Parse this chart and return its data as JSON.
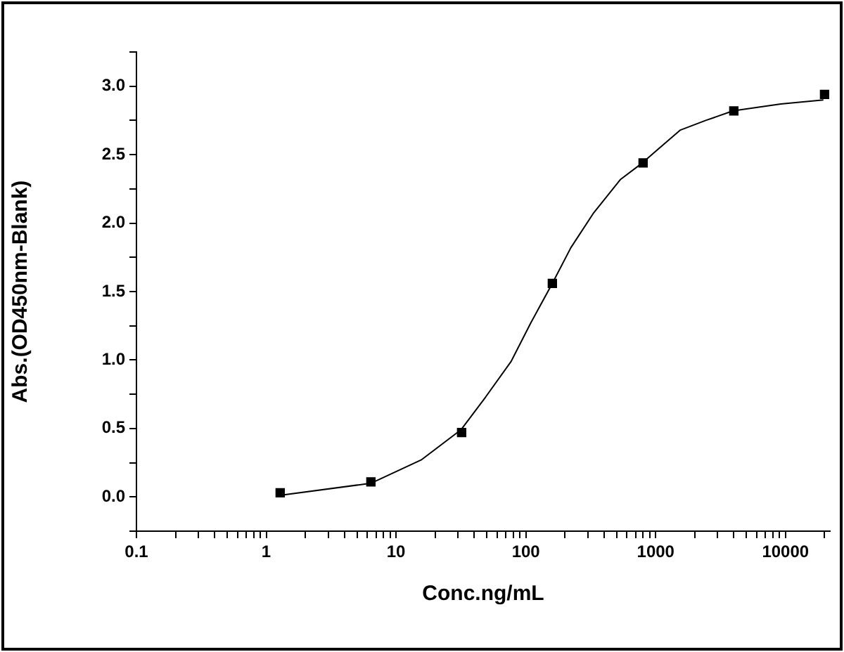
{
  "chart_data": {
    "type": "scatter",
    "xlabel": "Conc.ng/mL",
    "ylabel": "Abs.(OD450nm-Blank)",
    "log": "x",
    "grid": false,
    "legend": false,
    "xlim": [
      0.1,
      22000
    ],
    "ylim": [
      -0.25,
      3.25
    ],
    "xticks": [
      0.1,
      {
        "value": 0.2,
        "label": null
      },
      {
        "value": 0.3,
        "label": null
      },
      {
        "value": 0.4,
        "label": null
      },
      {
        "value": 0.5,
        "label": null
      },
      {
        "value": 0.6,
        "label": null
      },
      {
        "value": 0.7,
        "label": null
      },
      {
        "value": 0.8,
        "label": null
      },
      {
        "value": 0.9,
        "label": null
      },
      1,
      {
        "value": 2,
        "label": null
      },
      {
        "value": 3,
        "label": null
      },
      {
        "value": 4,
        "label": null
      },
      {
        "value": 5,
        "label": null
      },
      {
        "value": 6,
        "label": null
      },
      {
        "value": 7,
        "label": null
      },
      {
        "value": 8,
        "label": null
      },
      {
        "value": 9,
        "label": null
      },
      10,
      {
        "value": 20,
        "label": null
      },
      {
        "value": 30,
        "label": null
      },
      {
        "value": 40,
        "label": null
      },
      {
        "value": 50,
        "label": null
      },
      {
        "value": 60,
        "label": null
      },
      {
        "value": 70,
        "label": null
      },
      {
        "value": 80,
        "label": null
      },
      {
        "value": 90,
        "label": null
      },
      100,
      {
        "value": 200,
        "label": null
      },
      {
        "value": 300,
        "label": null
      },
      {
        "value": 400,
        "label": null
      },
      {
        "value": 500,
        "label": null
      },
      {
        "value": 600,
        "label": null
      },
      {
        "value": 700,
        "label": null
      },
      {
        "value": 800,
        "label": null
      },
      {
        "value": 900,
        "label": null
      },
      1000,
      {
        "value": 2000,
        "label": null
      },
      {
        "value": 3000,
        "label": null
      },
      {
        "value": 4000,
        "label": null
      },
      {
        "value": 5000,
        "label": null
      },
      {
        "value": 6000,
        "label": null
      },
      {
        "value": 7000,
        "label": null
      },
      {
        "value": 8000,
        "label": null
      },
      {
        "value": 9000,
        "label": null
      },
      10000,
      {
        "value": 20000,
        "label": null
      }
    ],
    "yticks": [
      {
        "value": -0.25,
        "label": null
      },
      {
        "value": 0,
        "label": "0.0"
      },
      {
        "value": 0.25,
        "label": null
      },
      0.5,
      {
        "value": 0.75,
        "label": null
      },
      {
        "value": 1,
        "label": "1.0"
      },
      {
        "value": 1.25,
        "label": null
      },
      1.5,
      {
        "value": 1.75,
        "label": null
      },
      {
        "value": 2,
        "label": "2.0"
      },
      {
        "value": 2.25,
        "label": null
      },
      2.5,
      {
        "value": 2.75,
        "label": null
      },
      {
        "value": 3,
        "label": "3.0"
      },
      {
        "value": 3.25,
        "label": null
      }
    ],
    "series": [
      {
        "color": "#000000",
        "marker": "square",
        "x": [
          1.28,
          6.4,
          32,
          160,
          800,
          4000,
          20000
        ],
        "values": [
          0.03,
          0.11,
          0.47,
          1.56,
          2.44,
          2.82,
          2.94
        ]
      },
      {
        "type": "line",
        "color": "#000000",
        "marker": "none",
        "line_style": "solid",
        "x": [
          1.25,
          6.4,
          15.6,
          31.6,
          49,
          77,
          109,
          160,
          222,
          330,
          537,
          790,
          1045,
          1550,
          2430,
          3950,
          9200,
          19600
        ],
        "values": [
          0.01,
          0.1,
          0.27,
          0.49,
          0.73,
          0.99,
          1.27,
          1.56,
          1.82,
          2.07,
          2.32,
          2.44,
          2.54,
          2.68,
          2.75,
          2.82,
          2.87,
          2.9
        ]
      }
    ]
  }
}
